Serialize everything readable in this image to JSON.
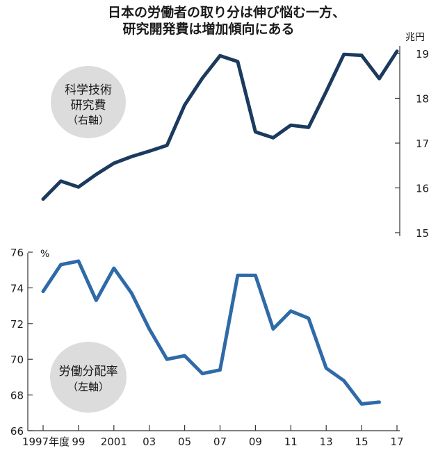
{
  "title": {
    "line1": "日本の労働者の取り分は伸び悩む一方、",
    "line2": "研究開発費は増加傾向にある"
  },
  "colors": {
    "rd_line": "#1b3a5e",
    "labor_line": "#2f6aa8",
    "bubble": "#dcdcdc"
  },
  "chart_data": [
    {
      "type": "line",
      "series": [
        {
          "name": "科学技術研究費（右軸）",
          "label_lines": [
            "科学技術",
            "研究費",
            "（右軸）"
          ],
          "values": [
            15.75,
            16.15,
            16.02,
            16.3,
            16.55,
            16.7,
            16.82,
            16.95,
            17.85,
            18.45,
            18.95,
            18.82,
            17.25,
            17.12,
            17.4,
            17.35,
            18.15,
            18.98,
            18.96,
            18.44,
            19.05
          ]
        }
      ],
      "x": [
        1997,
        1998,
        1999,
        2000,
        2001,
        2002,
        2003,
        2004,
        2005,
        2006,
        2007,
        2008,
        2009,
        2010,
        2011,
        2012,
        2013,
        2014,
        2015,
        2016,
        2017
      ],
      "y_axis": "right",
      "ylim": [
        15,
        19
      ],
      "yticks": [
        "19",
        "18",
        "17",
        "16",
        "15"
      ],
      "ytick_values": [
        19,
        18,
        17,
        16,
        15
      ],
      "unit": "兆円"
    },
    {
      "type": "line",
      "series": [
        {
          "name": "労働分配率（左軸）",
          "label_lines": [
            "労働分配率",
            "（左軸）"
          ],
          "values": [
            73.8,
            75.3,
            75.5,
            73.3,
            75.1,
            73.7,
            71.7,
            70.0,
            70.2,
            69.2,
            69.4,
            74.7,
            74.7,
            71.7,
            72.7,
            72.3,
            69.5,
            68.8,
            67.5,
            67.6,
            null
          ]
        }
      ],
      "x": [
        1997,
        1998,
        1999,
        2000,
        2001,
        2002,
        2003,
        2004,
        2005,
        2006,
        2007,
        2008,
        2009,
        2010,
        2011,
        2012,
        2013,
        2014,
        2015,
        2016,
        2017
      ],
      "y_axis": "left",
      "ylim": [
        66,
        76
      ],
      "yticks": [
        "76",
        "74",
        "72",
        "70",
        "68",
        "66"
      ],
      "ytick_values": [
        76,
        74,
        72,
        70,
        68,
        66
      ],
      "unit": "%"
    }
  ],
  "xaxis": {
    "tick_labels": [
      "1997年度",
      "99",
      "2001",
      "03",
      "05",
      "07",
      "09",
      "11",
      "13",
      "15",
      "17"
    ],
    "tick_years": [
      1997,
      1999,
      2001,
      2003,
      2005,
      2007,
      2009,
      2011,
      2013,
      2015,
      2017
    ]
  }
}
